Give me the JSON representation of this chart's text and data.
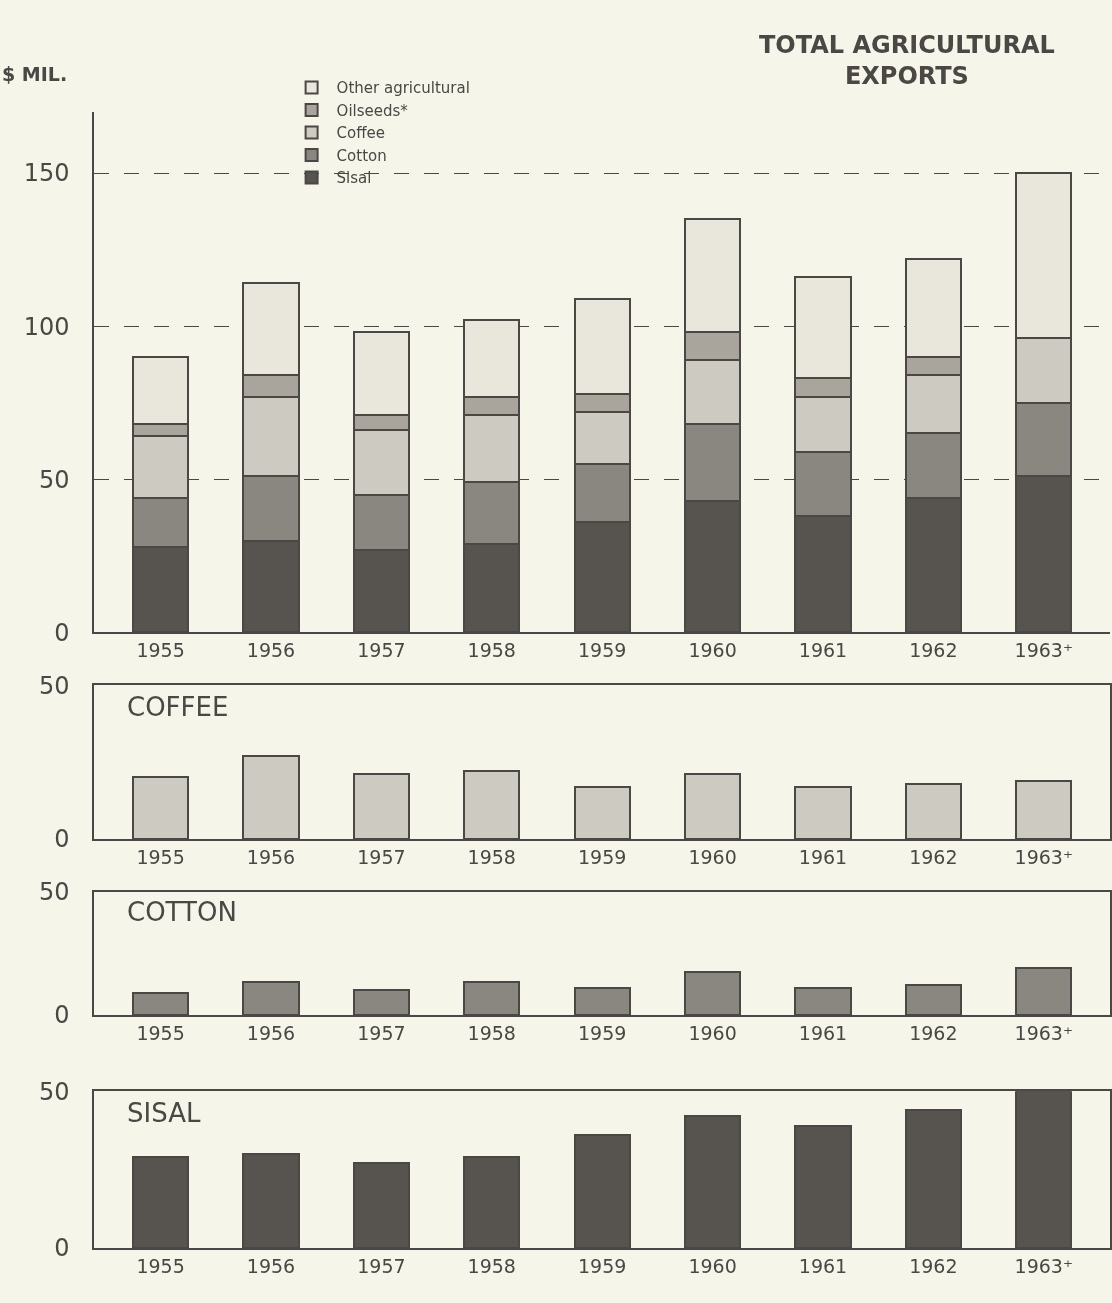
{
  "chart_data": [
    {
      "type": "bar",
      "title": "TOTAL AGRICULTURAL\nEXPORTS",
      "ylabel": "$ MIL.",
      "categories": [
        "1955",
        "1956",
        "1957",
        "1958",
        "1959",
        "1960",
        "1961",
        "1962",
        "1963⁺"
      ],
      "stacked": true,
      "ylim": [
        0,
        170
      ],
      "yticks": [
        0,
        50,
        100,
        150
      ],
      "grid": "y",
      "legend": "top left",
      "series": [
        {
          "name": "Sisal",
          "color": "#57534f",
          "values": [
            28,
            30,
            27,
            29,
            36,
            43,
            38,
            44,
            51
          ]
        },
        {
          "name": "Cotton",
          "color": "#8a8680",
          "values": [
            16,
            21,
            18,
            20,
            19,
            25,
            21,
            21,
            24
          ]
        },
        {
          "name": "Coffee",
          "color": "#cdcac1",
          "values": [
            20,
            26,
            21,
            22,
            17,
            21,
            18,
            19,
            21
          ]
        },
        {
          "name": "Oilseeds*",
          "color": "#a9a59d",
          "values": [
            4,
            7,
            5,
            6,
            6,
            9,
            6,
            6,
            null
          ]
        },
        {
          "name": "Other agricultural",
          "color": "#e9e7db",
          "values": [
            22,
            30,
            27,
            25,
            31,
            37,
            33,
            32,
            54
          ]
        }
      ]
    },
    {
      "type": "bar",
      "title": "COFFEE",
      "categories": [
        "1955",
        "1956",
        "1957",
        "1958",
        "1959",
        "1960",
        "1961",
        "1962",
        "1963⁺"
      ],
      "values": [
        20,
        27,
        21,
        22,
        17,
        21,
        17,
        18,
        19
      ],
      "color": "#cdcac1",
      "ylim": [
        0,
        50
      ],
      "yticks": [
        0,
        50
      ]
    },
    {
      "type": "bar",
      "title": "COTTON",
      "categories": [
        "1955",
        "1956",
        "1957",
        "1958",
        "1959",
        "1960",
        "1961",
        "1962",
        "1963⁺"
      ],
      "values": [
        9,
        13.5,
        10,
        13.5,
        11,
        17.5,
        11,
        12,
        19
      ],
      "color": "#8a8680",
      "ylim": [
        0,
        50
      ],
      "yticks": [
        0,
        50
      ]
    },
    {
      "type": "bar",
      "title": "SISAL",
      "categories": [
        "1955",
        "1956",
        "1957",
        "1958",
        "1959",
        "1960",
        "1961",
        "1962",
        "1963⁺"
      ],
      "values": [
        29,
        30,
        27,
        29,
        36,
        42,
        39,
        44,
        50
      ],
      "color": "#57534f",
      "ylim": [
        0,
        50
      ],
      "yticks": [
        0,
        50
      ]
    }
  ]
}
